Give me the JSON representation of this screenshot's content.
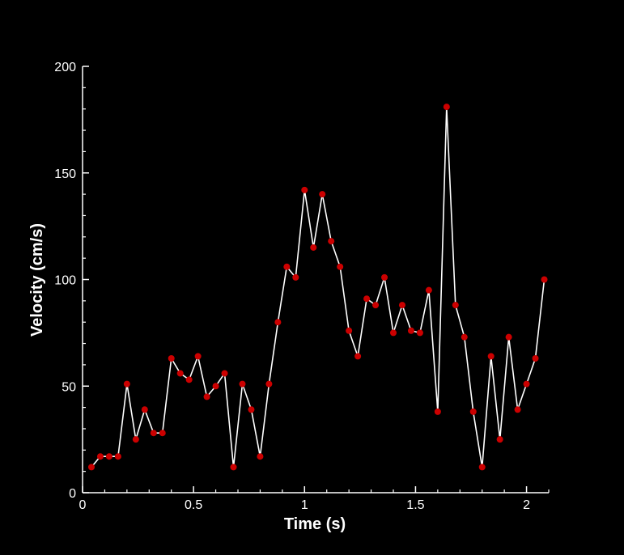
{
  "chart_data": {
    "type": "line",
    "xlabel": "Time (s)",
    "ylabel": "Velocity (cm/s)",
    "xlim": [
      0,
      2.1
    ],
    "ylim": [
      0,
      200
    ],
    "xticks": [
      0,
      0.5,
      1,
      1.5,
      2
    ],
    "xtick_labels": [
      "0",
      "0.5",
      "1",
      "1.5",
      "2"
    ],
    "yticks": [
      0,
      50,
      100,
      150,
      200
    ],
    "ytick_labels": [
      "0",
      "50",
      "100",
      "150",
      "200"
    ],
    "grid": false,
    "colors": {
      "background": "#000000",
      "axes": "#ffffff",
      "line": "#ffffff",
      "marker": "#cc0000"
    },
    "series": [
      {
        "x": [
          0.04,
          0.08,
          0.12,
          0.16,
          0.2,
          0.24,
          0.28,
          0.32,
          0.36,
          0.4,
          0.44,
          0.48,
          0.52,
          0.56,
          0.6,
          0.64,
          0.68,
          0.72,
          0.76,
          0.8,
          0.84,
          0.88,
          0.92,
          0.96,
          1.0,
          1.04,
          1.08,
          1.12,
          1.16,
          1.2,
          1.24,
          1.28,
          1.32,
          1.36,
          1.4,
          1.44,
          1.48,
          1.52,
          1.56,
          1.6,
          1.64,
          1.68,
          1.72,
          1.76,
          1.8,
          1.84,
          1.88,
          1.92,
          1.96,
          2.0,
          2.04,
          2.08
        ],
        "y": [
          12,
          17,
          17,
          17,
          51,
          25,
          39,
          28,
          28,
          63,
          56,
          53,
          64,
          45,
          50,
          56,
          12,
          51,
          39,
          17,
          51,
          80,
          106,
          101,
          142,
          115,
          140,
          118,
          106,
          76,
          64,
          91,
          88,
          101,
          75,
          88,
          76,
          75,
          95,
          38,
          181,
          88,
          73,
          38,
          12,
          64,
          25,
          73,
          39,
          51,
          63,
          100
        ]
      }
    ]
  }
}
